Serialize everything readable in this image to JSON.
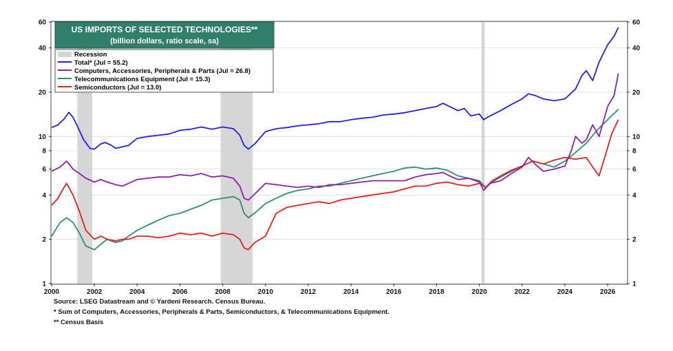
{
  "chart_data": {
    "type": "line",
    "title": "US IMPORTS OF SELECTED TECHNOLOGIES**",
    "subtitle": "(billion dollars, ratio scale, sa)",
    "scale": "log",
    "ylim": [
      1,
      60
    ],
    "xlim": [
      2000,
      2026.9
    ],
    "yticks": [
      1,
      2,
      4,
      6,
      8,
      10,
      20,
      40,
      60
    ],
    "ytick_labels": [
      "1",
      "2",
      "4",
      "6",
      "8",
      "10",
      "20",
      "40",
      "60"
    ],
    "xticks": [
      2000,
      2002,
      2004,
      2006,
      2008,
      2010,
      2012,
      2014,
      2016,
      2018,
      2020,
      2022,
      2024,
      2026
    ],
    "xtick_labels": [
      "2000",
      "2002",
      "2004",
      "2006",
      "2008",
      "2010",
      "2012",
      "2014",
      "2016",
      "2018",
      "2020",
      "2022",
      "2024",
      "2026"
    ],
    "grid": true,
    "legend_position": "top-left",
    "recession_label": "Recession",
    "recessions": [
      [
        2001.2,
        2001.9
      ],
      [
        2007.9,
        2009.4
      ],
      [
        2020.1,
        2020.25
      ]
    ],
    "series": [
      {
        "name": "Total* (Jul = 55.2)",
        "color": "#1f1fe0",
        "points": [
          [
            2000,
            11.5
          ],
          [
            2000.3,
            12
          ],
          [
            2000.6,
            13.2
          ],
          [
            2000.8,
            14.6
          ],
          [
            2001,
            13.5
          ],
          [
            2001.2,
            11.8
          ],
          [
            2001.5,
            9.5
          ],
          [
            2001.8,
            8.3
          ],
          [
            2002,
            8.2
          ],
          [
            2002.3,
            8.9
          ],
          [
            2002.5,
            9.1
          ],
          [
            2002.8,
            8.7
          ],
          [
            2003,
            8.3
          ],
          [
            2003.3,
            8.5
          ],
          [
            2003.6,
            8.7
          ],
          [
            2004,
            9.7
          ],
          [
            2004.5,
            10
          ],
          [
            2005,
            10.2
          ],
          [
            2005.5,
            10.4
          ],
          [
            2006,
            11
          ],
          [
            2006.5,
            11.2
          ],
          [
            2007,
            11.6
          ],
          [
            2007.5,
            11.2
          ],
          [
            2008,
            11.6
          ],
          [
            2008.5,
            11.3
          ],
          [
            2008.8,
            10.2
          ],
          [
            2009,
            8.7
          ],
          [
            2009.2,
            8.2
          ],
          [
            2009.5,
            8.9
          ],
          [
            2010,
            10.8
          ],
          [
            2010.5,
            11.3
          ],
          [
            2011,
            11.5
          ],
          [
            2011.5,
            11.8
          ],
          [
            2012,
            12
          ],
          [
            2012.5,
            12.2
          ],
          [
            2013,
            12.6
          ],
          [
            2013.5,
            12.6
          ],
          [
            2014,
            13
          ],
          [
            2014.5,
            13.3
          ],
          [
            2015,
            13.5
          ],
          [
            2015.5,
            14
          ],
          [
            2016,
            14.2
          ],
          [
            2016.5,
            14.5
          ],
          [
            2017,
            15
          ],
          [
            2017.5,
            15.5
          ],
          [
            2018,
            16
          ],
          [
            2018.3,
            16.8
          ],
          [
            2018.6,
            16
          ],
          [
            2019,
            15
          ],
          [
            2019.3,
            15.5
          ],
          [
            2019.6,
            13.8
          ],
          [
            2020,
            14.2
          ],
          [
            2020.2,
            13
          ],
          [
            2020.5,
            13.8
          ],
          [
            2021,
            15
          ],
          [
            2021.5,
            16.5
          ],
          [
            2022,
            18
          ],
          [
            2022.3,
            19.5
          ],
          [
            2022.6,
            19
          ],
          [
            2023,
            18
          ],
          [
            2023.5,
            17.5
          ],
          [
            2024,
            18
          ],
          [
            2024.5,
            21
          ],
          [
            2024.8,
            26
          ],
          [
            2025,
            28
          ],
          [
            2025.3,
            24
          ],
          [
            2025.6,
            32
          ],
          [
            2026,
            42
          ],
          [
            2026.3,
            48
          ],
          [
            2026.5,
            55.2
          ]
        ]
      },
      {
        "name": "Computers, Accessories, Peripherals & Parts (Jul = 26.8)",
        "color": "#8b1fa8",
        "points": [
          [
            2000,
            5.8
          ],
          [
            2000.4,
            6.2
          ],
          [
            2000.7,
            6.8
          ],
          [
            2001,
            6
          ],
          [
            2001.3,
            5.6
          ],
          [
            2001.6,
            5.2
          ],
          [
            2002,
            4.9
          ],
          [
            2002.3,
            5.1
          ],
          [
            2002.6,
            4.9
          ],
          [
            2003,
            4.7
          ],
          [
            2003.3,
            4.6
          ],
          [
            2003.6,
            4.8
          ],
          [
            2004,
            5.1
          ],
          [
            2004.5,
            5.2
          ],
          [
            2005,
            5.3
          ],
          [
            2005.5,
            5.3
          ],
          [
            2006,
            5.5
          ],
          [
            2006.5,
            5.4
          ],
          [
            2007,
            5.6
          ],
          [
            2007.5,
            5.3
          ],
          [
            2008,
            5.4
          ],
          [
            2008.5,
            5.2
          ],
          [
            2008.8,
            4.6
          ],
          [
            2009,
            3.8
          ],
          [
            2009.2,
            3.7
          ],
          [
            2009.6,
            4.2
          ],
          [
            2010,
            4.8
          ],
          [
            2010.5,
            4.7
          ],
          [
            2011,
            4.6
          ],
          [
            2011.5,
            4.5
          ],
          [
            2012,
            4.6
          ],
          [
            2012.5,
            4.5
          ],
          [
            2013,
            4.7
          ],
          [
            2013.5,
            4.7
          ],
          [
            2014,
            4.8
          ],
          [
            2014.5,
            4.9
          ],
          [
            2015,
            5
          ],
          [
            2015.5,
            5
          ],
          [
            2016,
            5
          ],
          [
            2016.5,
            5
          ],
          [
            2017,
            5.3
          ],
          [
            2017.5,
            5.5
          ],
          [
            2018,
            5.6
          ],
          [
            2018.3,
            5.7
          ],
          [
            2018.6,
            5.4
          ],
          [
            2019,
            5.1
          ],
          [
            2019.5,
            5.2
          ],
          [
            2020,
            4.9
          ],
          [
            2020.2,
            4.3
          ],
          [
            2020.5,
            4.8
          ],
          [
            2021,
            5
          ],
          [
            2021.5,
            5.6
          ],
          [
            2022,
            6.2
          ],
          [
            2022.3,
            7.2
          ],
          [
            2022.6,
            6.5
          ],
          [
            2023,
            5.8
          ],
          [
            2023.5,
            6
          ],
          [
            2024,
            6.3
          ],
          [
            2024.3,
            8
          ],
          [
            2024.5,
            10
          ],
          [
            2024.8,
            9
          ],
          [
            2025,
            9.5
          ],
          [
            2025.3,
            12
          ],
          [
            2025.6,
            10
          ],
          [
            2026,
            16
          ],
          [
            2026.3,
            19
          ],
          [
            2026.5,
            26.8
          ]
        ]
      },
      {
        "name": "Telecommunications Equipment (Jul = 15.3)",
        "color": "#2e8b77",
        "points": [
          [
            2000,
            2.1
          ],
          [
            2000.4,
            2.6
          ],
          [
            2000.7,
            2.8
          ],
          [
            2001,
            2.6
          ],
          [
            2001.3,
            2.2
          ],
          [
            2001.6,
            1.8
          ],
          [
            2002,
            1.7
          ],
          [
            2002.3,
            1.85
          ],
          [
            2002.6,
            2
          ],
          [
            2003,
            1.9
          ],
          [
            2003.3,
            1.95
          ],
          [
            2003.6,
            2.1
          ],
          [
            2004,
            2.3
          ],
          [
            2004.5,
            2.5
          ],
          [
            2005,
            2.7
          ],
          [
            2005.5,
            2.9
          ],
          [
            2006,
            3
          ],
          [
            2006.5,
            3.2
          ],
          [
            2007,
            3.4
          ],
          [
            2007.5,
            3.7
          ],
          [
            2008,
            3.8
          ],
          [
            2008.5,
            3.9
          ],
          [
            2008.8,
            3.7
          ],
          [
            2009,
            3
          ],
          [
            2009.2,
            2.8
          ],
          [
            2009.6,
            3.1
          ],
          [
            2010,
            3.5
          ],
          [
            2010.5,
            3.8
          ],
          [
            2011,
            4.1
          ],
          [
            2011.5,
            4.3
          ],
          [
            2012,
            4.4
          ],
          [
            2012.5,
            4.6
          ],
          [
            2013,
            4.6
          ],
          [
            2013.5,
            4.8
          ],
          [
            2014,
            5
          ],
          [
            2014.5,
            5.2
          ],
          [
            2015,
            5.4
          ],
          [
            2015.5,
            5.6
          ],
          [
            2016,
            5.8
          ],
          [
            2016.5,
            6.1
          ],
          [
            2017,
            6.2
          ],
          [
            2017.5,
            6
          ],
          [
            2018,
            6.1
          ],
          [
            2018.5,
            5.9
          ],
          [
            2019,
            5.4
          ],
          [
            2019.5,
            5.2
          ],
          [
            2020,
            5
          ],
          [
            2020.3,
            4.5
          ],
          [
            2020.6,
            4.9
          ],
          [
            2021,
            5.3
          ],
          [
            2021.5,
            5.8
          ],
          [
            2022,
            6.3
          ],
          [
            2022.5,
            6.8
          ],
          [
            2023,
            6.5
          ],
          [
            2023.5,
            6.2
          ],
          [
            2024,
            6.8
          ],
          [
            2024.5,
            7.8
          ],
          [
            2025,
            9
          ],
          [
            2025.5,
            11
          ],
          [
            2026,
            13
          ],
          [
            2026.5,
            15.3
          ]
        ]
      },
      {
        "name": "Semiconductors (Jul = 13.0)",
        "color": "#e0201a",
        "points": [
          [
            2000,
            3.4
          ],
          [
            2000.3,
            3.8
          ],
          [
            2000.5,
            4.3
          ],
          [
            2000.7,
            4.8
          ],
          [
            2001,
            4
          ],
          [
            2001.3,
            3.1
          ],
          [
            2001.6,
            2.3
          ],
          [
            2002,
            2
          ],
          [
            2002.3,
            2.1
          ],
          [
            2002.6,
            2
          ],
          [
            2003,
            1.95
          ],
          [
            2003.3,
            2
          ],
          [
            2003.6,
            2
          ],
          [
            2004,
            2.1
          ],
          [
            2004.5,
            2.1
          ],
          [
            2005,
            2.05
          ],
          [
            2005.5,
            2.1
          ],
          [
            2006,
            2.2
          ],
          [
            2006.5,
            2.15
          ],
          [
            2007,
            2.2
          ],
          [
            2007.5,
            2.1
          ],
          [
            2008,
            2.2
          ],
          [
            2008.5,
            2.15
          ],
          [
            2008.8,
            2
          ],
          [
            2009,
            1.75
          ],
          [
            2009.2,
            1.7
          ],
          [
            2009.5,
            1.9
          ],
          [
            2010,
            2.1
          ],
          [
            2010.5,
            3
          ],
          [
            2011,
            3.3
          ],
          [
            2011.5,
            3.4
          ],
          [
            2012,
            3.5
          ],
          [
            2012.5,
            3.6
          ],
          [
            2013,
            3.5
          ],
          [
            2013.5,
            3.7
          ],
          [
            2014,
            3.8
          ],
          [
            2014.5,
            3.9
          ],
          [
            2015,
            4
          ],
          [
            2015.5,
            4.1
          ],
          [
            2016,
            4.2
          ],
          [
            2016.5,
            4.4
          ],
          [
            2017,
            4.6
          ],
          [
            2017.5,
            4.6
          ],
          [
            2018,
            4.8
          ],
          [
            2018.5,
            4.9
          ],
          [
            2019,
            4.7
          ],
          [
            2019.5,
            4.6
          ],
          [
            2020,
            4.8
          ],
          [
            2020.3,
            4.5
          ],
          [
            2020.6,
            5
          ],
          [
            2021,
            5.4
          ],
          [
            2021.5,
            5.9
          ],
          [
            2022,
            6.3
          ],
          [
            2022.5,
            6.8
          ],
          [
            2023,
            6.5
          ],
          [
            2023.5,
            6.9
          ],
          [
            2024,
            7.2
          ],
          [
            2024.5,
            7
          ],
          [
            2025,
            7.2
          ],
          [
            2025.3,
            6.2
          ],
          [
            2025.6,
            5.4
          ],
          [
            2025.9,
            7.5
          ],
          [
            2026.2,
            10.5
          ],
          [
            2026.5,
            13
          ]
        ]
      }
    ]
  },
  "footer": {
    "source": "Source: LSEG Datastream and © Yardeni Research. Census Bureau.",
    "note1": "* Sum of Computers, Accessories, Peripherals & Parts, Semiconductors, & Telecommunications Equipment.",
    "note2": "** Census Basis"
  },
  "colors": {
    "title_bg": "#2f7f6b",
    "recession_fill": "#d6d6d6",
    "grid": "#cfcfcf"
  }
}
